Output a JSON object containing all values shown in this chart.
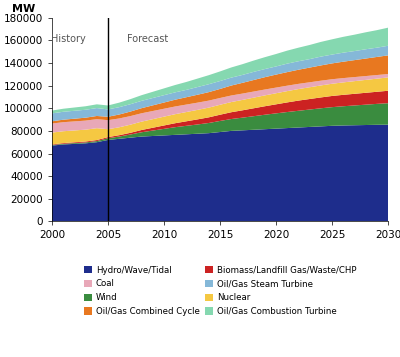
{
  "years": [
    2000,
    2001,
    2002,
    2003,
    2004,
    2005,
    2006,
    2007,
    2008,
    2009,
    2010,
    2011,
    2012,
    2013,
    2014,
    2015,
    2016,
    2017,
    2018,
    2019,
    2020,
    2021,
    2022,
    2023,
    2024,
    2025,
    2026,
    2027,
    2028,
    2029,
    2030
  ],
  "stack_order": [
    "Hydro/Wave/Tidal",
    "Wind",
    "Biomass/Landfill Gas/Waste/CHP",
    "Nuclear",
    "Coal",
    "Oil/Gas Combined Cycle",
    "Oil/Gas Steam Turbine",
    "Oil/Gas Combustion Turbine"
  ],
  "series": {
    "Hydro/Wave/Tidal": [
      67000,
      68000,
      68500,
      69000,
      70000,
      72000,
      73000,
      74000,
      75000,
      75500,
      76000,
      76500,
      77000,
      77500,
      78000,
      79000,
      80000,
      80500,
      81000,
      81500,
      82000,
      82500,
      83000,
      83500,
      84000,
      84500,
      84800,
      85000,
      85200,
      85400,
      85500
    ],
    "Wind": [
      500,
      600,
      700,
      800,
      1000,
      1500,
      2000,
      2800,
      3800,
      4800,
      5800,
      6800,
      7500,
      8200,
      9000,
      9800,
      10500,
      11200,
      12000,
      12800,
      13500,
      14200,
      14800,
      15400,
      16000,
      16500,
      17000,
      17500,
      18000,
      18500,
      19000
    ],
    "Biomass/Landfill Gas/Waste/CHP": [
      500,
      600,
      700,
      800,
      900,
      1000,
      1200,
      1500,
      2000,
      2500,
      3000,
      3500,
      4000,
      4500,
      5000,
      5500,
      6000,
      6500,
      7000,
      7500,
      8000,
      8500,
      9000,
      9300,
      9600,
      9900,
      10100,
      10300,
      10500,
      10700,
      11000
    ],
    "Nuclear": [
      10500,
      10500,
      10500,
      10500,
      10500,
      7000,
      7000,
      7200,
      7400,
      7600,
      7800,
      8000,
      8200,
      8400,
      8600,
      8800,
      9000,
      9200,
      9400,
      9600,
      9800,
      10000,
      10200,
      10400,
      10600,
      10800,
      11000,
      11200,
      11400,
      11600,
      11800
    ],
    "Coal": [
      8000,
      8000,
      8000,
      8000,
      8000,
      8000,
      7800,
      7600,
      7400,
      7200,
      7000,
      6800,
      6600,
      6400,
      6200,
      6000,
      5800,
      5600,
      5400,
      5200,
      5000,
      4800,
      4600,
      4400,
      4200,
      4000,
      3800,
      3600,
      3400,
      3200,
      3000
    ],
    "Oil/Gas Combined Cycle": [
      2000,
      2200,
      2400,
      2600,
      2800,
      3000,
      3500,
      4000,
      4500,
      5000,
      5500,
      6000,
      6500,
      7000,
      7500,
      8000,
      8800,
      9500,
      10200,
      10900,
      11500,
      12000,
      12500,
      13000,
      13500,
      14000,
      14500,
      15000,
      15500,
      16000,
      16500
    ],
    "Oil/Gas Steam Turbine": [
      7000,
      7000,
      7000,
      7000,
      7000,
      6500,
      6500,
      6500,
      6500,
      6500,
      6500,
      6500,
      6500,
      6800,
      7000,
      7000,
      7000,
      7000,
      7200,
      7200,
      7200,
      7500,
      7500,
      7500,
      7800,
      7800,
      8000,
      8000,
      8200,
      8200,
      8500
    ],
    "Oil/Gas Combustion Turbine": [
      2500,
      2700,
      2900,
      3100,
      3300,
      3500,
      4000,
      4500,
      5000,
      5500,
      6000,
      6500,
      7000,
      7500,
      8000,
      8500,
      9000,
      9500,
      10000,
      10500,
      11000,
      11500,
      12000,
      12500,
      13000,
      13500,
      14000,
      14500,
      15000,
      15500,
      16000
    ]
  },
  "colors": {
    "Hydro/Wave/Tidal": "#1e2d8c",
    "Wind": "#3a8c3f",
    "Biomass/Landfill Gas/Waste/CHP": "#cc2222",
    "Nuclear": "#f5c842",
    "Coal": "#e8a8b8",
    "Oil/Gas Combined Cycle": "#e87820",
    "Oil/Gas Steam Turbine": "#85b8d8",
    "Oil/Gas Combustion Turbine": "#85d8b0"
  },
  "ylim": [
    0,
    180000
  ],
  "yticks": [
    0,
    20000,
    40000,
    60000,
    80000,
    100000,
    120000,
    140000,
    160000,
    180000
  ],
  "xticks": [
    2000,
    2005,
    2010,
    2015,
    2020,
    2025,
    2030
  ],
  "vline_x": 2005,
  "history_label": "History",
  "forecast_label": "Forecast",
  "ylabel": "MW",
  "bg_color": "#ffffff",
  "legend_order": [
    "Hydro/Wave/Tidal",
    "Coal",
    "Wind",
    "Oil/Gas Combined Cycle",
    "Biomass/Landfill Gas/Waste/CHP",
    "Oil/Gas Steam Turbine",
    "Nuclear",
    "Oil/Gas Combustion Turbine"
  ]
}
